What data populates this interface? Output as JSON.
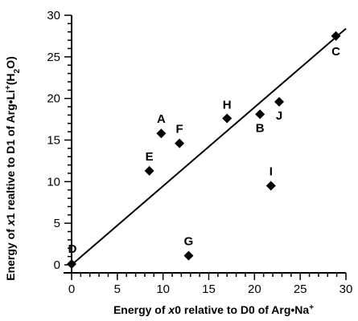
{
  "chart_data": {
    "type": "scatter",
    "title": "",
    "xlabel": {
      "parts": [
        {
          "text": "Energy of "
        },
        {
          "text": "x",
          "italic": true
        },
        {
          "text": "0 relative to D0 of Arg•Na"
        },
        {
          "text": "+",
          "sup": true
        }
      ]
    },
    "ylabel": {
      "parts": [
        {
          "text": "Energy of "
        },
        {
          "text": "x",
          "italic": true
        },
        {
          "text": "1 realtive to D1 of Arg•Li"
        },
        {
          "text": "+",
          "sup": true
        },
        {
          "text": "(H"
        },
        {
          "text": "2",
          "sub": true
        },
        {
          "text": "O)"
        }
      ]
    },
    "xlim": [
      0,
      30
    ],
    "ylim": [
      0,
      30
    ],
    "x_ticks": [
      0,
      5,
      10,
      15,
      20,
      25,
      30
    ],
    "y_ticks": [
      0,
      5,
      10,
      15,
      20,
      25,
      30
    ],
    "grid": false,
    "marker": "diamond",
    "marker_color": "#000000",
    "points": [
      {
        "label": "A",
        "x": 9.8,
        "y": 15.8
      },
      {
        "label": "B",
        "x": 20.6,
        "y": 18.1
      },
      {
        "label": "C",
        "x": 28.9,
        "y": 27.5
      },
      {
        "label": "D",
        "x": 0.0,
        "y": 0.1
      },
      {
        "label": "E",
        "x": 8.5,
        "y": 11.3
      },
      {
        "label": "F",
        "x": 11.8,
        "y": 14.6
      },
      {
        "label": "G",
        "x": 12.8,
        "y": 1.1
      },
      {
        "label": "H",
        "x": 17.0,
        "y": 17.6
      },
      {
        "label": "I",
        "x": 21.8,
        "y": 9.5
      },
      {
        "label": "J",
        "x": 22.7,
        "y": 19.6
      }
    ],
    "fit_line": {
      "x": [
        0,
        30
      ],
      "y": [
        0,
        28.4
      ]
    }
  }
}
